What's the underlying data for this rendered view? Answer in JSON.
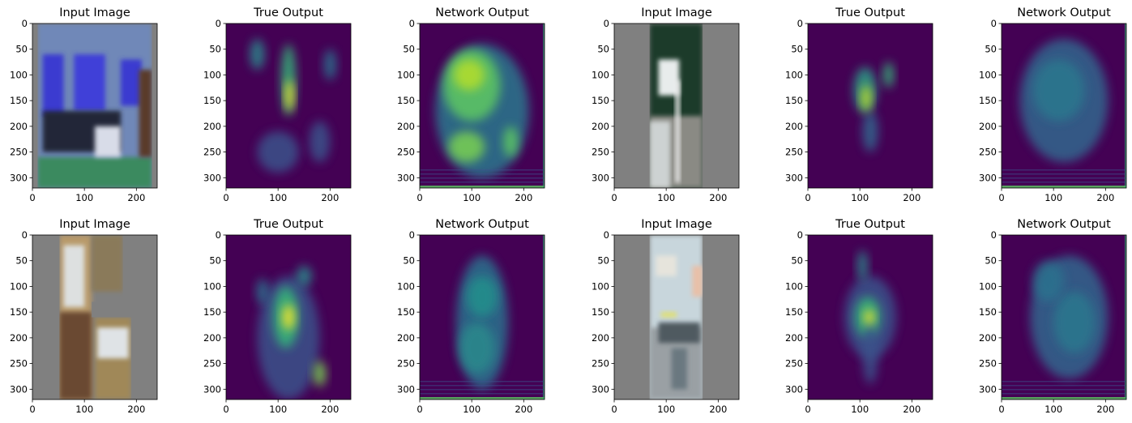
{
  "chart_data": {
    "type": "heatmap",
    "colormap": "viridis",
    "grid": false,
    "panels": [
      {
        "title": "Input Image",
        "kind": "photo",
        "xlim": [
          0,
          240
        ],
        "ylim": [
          320,
          0
        ]
      },
      {
        "title": "True Output",
        "kind": "heatmap",
        "xlim": [
          0,
          240
        ],
        "ylim": [
          320,
          0
        ]
      },
      {
        "title": "Network Output",
        "kind": "heatmap",
        "xlim": [
          0,
          240
        ],
        "ylim": [
          320,
          0
        ]
      },
      {
        "title": "Input Image",
        "kind": "photo",
        "xlim": [
          0,
          240
        ],
        "ylim": [
          320,
          0
        ]
      },
      {
        "title": "True Output",
        "kind": "heatmap",
        "xlim": [
          0,
          240
        ],
        "ylim": [
          320,
          0
        ]
      },
      {
        "title": "Network Output",
        "kind": "heatmap",
        "xlim": [
          0,
          240
        ],
        "ylim": [
          320,
          0
        ]
      },
      {
        "title": "Input Image",
        "kind": "photo",
        "xlim": [
          0,
          240
        ],
        "ylim": [
          320,
          0
        ]
      },
      {
        "title": "True Output",
        "kind": "heatmap",
        "xlim": [
          0,
          240
        ],
        "ylim": [
          320,
          0
        ]
      },
      {
        "title": "Network Output",
        "kind": "heatmap",
        "xlim": [
          0,
          240
        ],
        "ylim": [
          320,
          0
        ]
      },
      {
        "title": "Input Image",
        "kind": "photo",
        "xlim": [
          0,
          240
        ],
        "ylim": [
          320,
          0
        ]
      },
      {
        "title": "True Output",
        "kind": "heatmap",
        "xlim": [
          0,
          240
        ],
        "ylim": [
          320,
          0
        ]
      },
      {
        "title": "Network Output",
        "kind": "heatmap",
        "xlim": [
          0,
          240
        ],
        "ylim": [
          320,
          0
        ]
      }
    ],
    "xticks": [
      "0",
      "100",
      "200"
    ],
    "yticks": [
      "0",
      "50",
      "100",
      "150",
      "200",
      "250",
      "300"
    ]
  }
}
